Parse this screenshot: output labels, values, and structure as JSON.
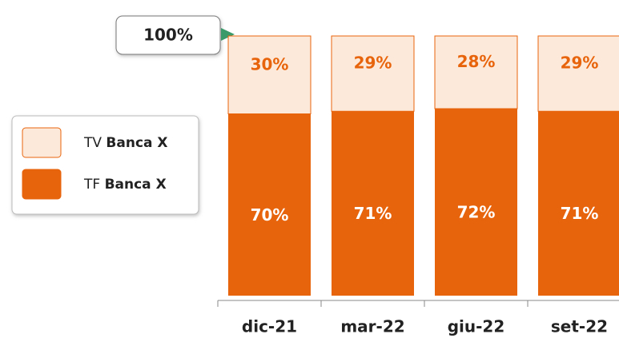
{
  "chart_data": {
    "type": "stacked_bar",
    "annotation": "100%",
    "categories": [
      "dic-21",
      "mar-22",
      "giu-22",
      "set-22"
    ],
    "series": [
      {
        "name": "TF Banca X",
        "color": "#e8640c",
        "values": [
          70,
          71,
          72,
          71
        ],
        "value_labels": [
          "70%",
          "71%",
          "72%",
          "71%"
        ]
      },
      {
        "name": "TV Banca X",
        "color": "#fde9d9",
        "values": [
          30,
          29,
          28,
          29
        ],
        "value_labels": [
          "30%",
          "29%",
          "28%",
          "29%"
        ]
      }
    ],
    "ylim": [
      0,
      100
    ]
  }
}
